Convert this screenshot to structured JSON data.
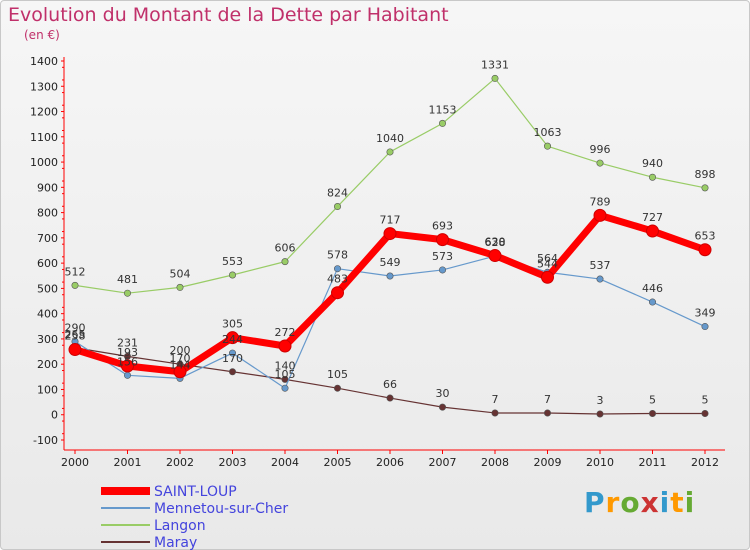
{
  "chart_data": {
    "type": "line",
    "title": "Evolution du Montant de la Dette par Habitant",
    "subtitle": "(en €)",
    "categories": [
      "2000",
      "2001",
      "2002",
      "2003",
      "2004",
      "2005",
      "2006",
      "2007",
      "2008",
      "2009",
      "2010",
      "2011",
      "2012"
    ],
    "ylim": [
      -100,
      1400
    ],
    "yticks": [
      -100,
      0,
      100,
      200,
      300,
      400,
      500,
      600,
      700,
      800,
      900,
      1000,
      1100,
      1200,
      1300,
      1400
    ],
    "grid": false,
    "legend_position": "bottom-left",
    "series": [
      {
        "name": "SAINT-LOUP",
        "color": "#ff0000",
        "values": [
          258,
          193,
          170,
          305,
          272,
          483,
          717,
          693,
          630,
          544,
          789,
          727,
          653
        ]
      },
      {
        "name": "Mennetou-sur-Cher",
        "color": "#6699cc",
        "values": [
          290,
          156,
          144,
          244,
          105,
          578,
          549,
          573,
          628,
          564,
          537,
          446,
          349
        ]
      },
      {
        "name": "Langon",
        "color": "#99cc66",
        "values": [
          512,
          481,
          504,
          553,
          606,
          824,
          1040,
          1153,
          1331,
          1063,
          996,
          940,
          898
        ]
      },
      {
        "name": "Maray",
        "color": "#663333",
        "values": [
          265,
          231,
          200,
          170,
          140,
          105,
          66,
          30,
          7,
          7,
          3,
          5,
          5
        ]
      }
    ]
  },
  "logo": {
    "text": "Proxiti",
    "letters": [
      "P",
      "r",
      "o",
      "x",
      "i",
      "t",
      "i"
    ],
    "colors": [
      "#3399cc",
      "#ff9900",
      "#66aa33",
      "#cc3333",
      "#3399cc",
      "#ff9900",
      "#66aa33"
    ]
  },
  "legend_text_color": "#4444dd"
}
